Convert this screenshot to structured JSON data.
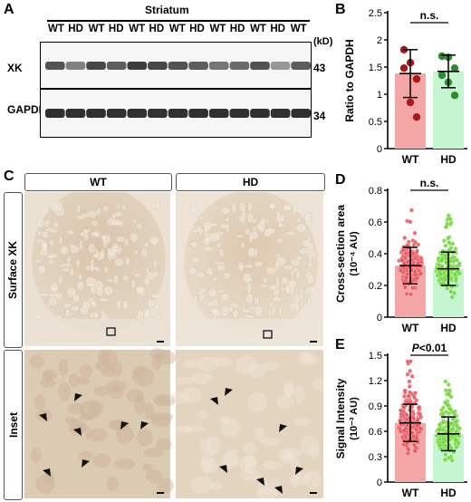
{
  "panels": {
    "A": "A",
    "B": "B",
    "C": "C",
    "D": "D",
    "E": "E"
  },
  "blot": {
    "region": "Striatum",
    "lanes": [
      "WT",
      "HD",
      "WT",
      "HD",
      "WT",
      "HD",
      "WT",
      "HD",
      "WT",
      "HD",
      "WT",
      "HD",
      "WT"
    ],
    "unit": "(kD)",
    "rows": [
      {
        "label": "XK",
        "marker": "43",
        "band_intensity": [
          0.75,
          0.55,
          0.8,
          0.7,
          0.85,
          0.8,
          0.75,
          0.7,
          0.6,
          0.65,
          0.75,
          0.45,
          0.7
        ]
      },
      {
        "label": "GAPDH",
        "marker": "34",
        "band_intensity": [
          0.9,
          0.9,
          0.9,
          0.9,
          0.9,
          0.9,
          0.9,
          0.9,
          0.9,
          0.9,
          0.9,
          0.9,
          0.9
        ]
      }
    ]
  },
  "panel_c": {
    "columns": [
      "WT",
      "HD"
    ],
    "rows": [
      "Surface XK",
      "Inset"
    ]
  },
  "colors": {
    "wt_fill": "#f4a6a6",
    "wt_point": "#e8535a",
    "hd_fill": "#c6f5d2",
    "hd_point": "#70d63a",
    "b_wt_point": "#a81a1a",
    "b_hd_point": "#2e8a2e"
  },
  "chart_data": [
    {
      "panel": "B",
      "type": "bar",
      "categories": [
        "WT",
        "HD"
      ],
      "values": [
        1.38,
        1.42
      ],
      "errors": [
        0.44,
        0.3
      ],
      "points": [
        [
          1.82,
          1.58,
          1.28,
          1.48,
          0.85,
          0.58
        ],
        [
          1.7,
          1.68,
          1.48,
          1.35,
          1.22,
          0.98
        ]
      ],
      "ylabel": "Ratio to GAPDH",
      "ylim": [
        0,
        2.5
      ],
      "yticks": [
        0,
        0.5,
        1.0,
        1.5,
        2.0,
        2.5
      ],
      "significance": "n.s."
    },
    {
      "panel": "D",
      "type": "bar",
      "categories": [
        "WT",
        "HD"
      ],
      "values": [
        0.325,
        0.305
      ],
      "errors": [
        0.115,
        0.105
      ],
      "ylabel": "Cross-section area",
      "ylabel2": "(10⁻⁴ AU)",
      "ylim": [
        0,
        0.8
      ],
      "yticks": [
        0,
        0.2,
        0.4,
        0.6,
        0.8
      ],
      "significance": "n.s."
    },
    {
      "panel": "E",
      "type": "bar",
      "categories": [
        "WT",
        "HD"
      ],
      "values": [
        0.7,
        0.57
      ],
      "errors": [
        0.22,
        0.2
      ],
      "ylabel": "Signal Intensity",
      "ylabel2": "(10⁻³ AU)",
      "ylim": [
        0,
        1.5
      ],
      "yticks": [
        0,
        0.3,
        0.6,
        0.9,
        1.2,
        1.5
      ],
      "significance": "P<0.01"
    }
  ]
}
